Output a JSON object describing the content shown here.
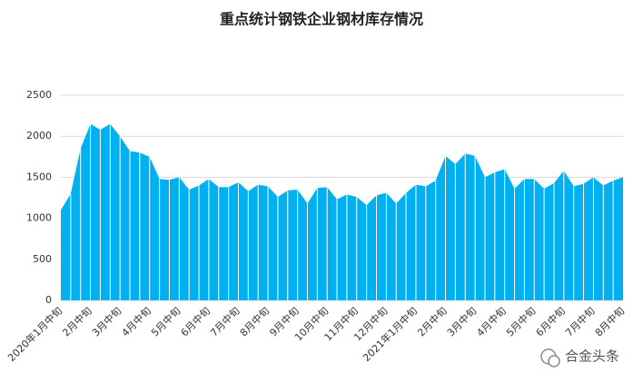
{
  "chart_data": {
    "type": "area",
    "title": "重点统计钢铁企业钢材库存情况",
    "categories": [
      "2020年1月中旬",
      null,
      null,
      "2月中旬",
      null,
      null,
      "3月中旬",
      null,
      null,
      "4月中旬",
      null,
      null,
      "5月中旬",
      null,
      null,
      "6月中旬",
      null,
      null,
      "7月中旬",
      null,
      null,
      "8月中旬",
      null,
      null,
      "9月中旬",
      null,
      null,
      "10月中旬",
      null,
      null,
      "11月中旬",
      null,
      null,
      "12月中旬",
      null,
      null,
      "2021年1月中旬",
      null,
      null,
      "2月中旬",
      null,
      null,
      "3月中旬",
      null,
      null,
      "4月中旬",
      null,
      null,
      "5月中旬",
      null,
      null,
      "6月中旬",
      null,
      null,
      "7月中旬",
      null,
      null,
      "8月中旬"
    ],
    "values": [
      1100,
      1300,
      1850,
      2150,
      2080,
      2150,
      2000,
      1820,
      1800,
      1750,
      1480,
      1470,
      1500,
      1350,
      1400,
      1480,
      1380,
      1380,
      1440,
      1330,
      1410,
      1390,
      1260,
      1340,
      1350,
      1180,
      1370,
      1380,
      1230,
      1290,
      1260,
      1160,
      1280,
      1310,
      1180,
      1310,
      1410,
      1390,
      1460,
      1760,
      1660,
      1790,
      1760,
      1500,
      1560,
      1600,
      1360,
      1480,
      1480,
      1360,
      1430,
      1580,
      1390,
      1420,
      1500,
      1400,
      1460,
      1500
    ],
    "color": "#00b0f0",
    "ylim": [
      0,
      2500
    ],
    "yticks": [
      0,
      500,
      1000,
      1500,
      2000,
      2500
    ],
    "grid": true
  },
  "watermark": "合金头条"
}
